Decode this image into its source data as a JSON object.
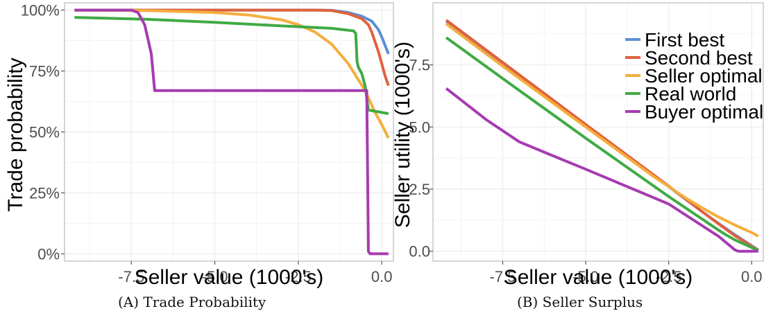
{
  "colors": {
    "first_best": "#5B8ED6",
    "second_best": "#E0623E",
    "seller_optimal": "#F5AE3C",
    "real_world": "#3FAA44",
    "buyer_optimal": "#A63BB0",
    "grid": "#EBEBEB",
    "axis_text": "#4D4D4D",
    "panel_border": "#BBBBBB"
  },
  "chart_data": [
    {
      "id": "A",
      "type": "line",
      "caption_label": "(A)",
      "caption_text": "Trade Probability",
      "xlabel": "Seller value (1000's)",
      "ylabel": "Trade probability",
      "xlim": [
        -9.5,
        0.35
      ],
      "ylim": [
        -0.03,
        1.03
      ],
      "xticks": [
        -7.5,
        -5.0,
        -2.5,
        0.0
      ],
      "xtick_labels": [
        "-7.5",
        "-5.0",
        "-2.5",
        "0.0"
      ],
      "yticks": [
        0,
        0.25,
        0.5,
        0.75,
        1.0
      ],
      "ytick_labels": [
        "0%",
        "25%",
        "50%",
        "75%",
        "100%"
      ],
      "grid": true,
      "series": [
        {
          "key": "first_best",
          "x": [
            -9.2,
            -5,
            -2,
            -1.5,
            -1.0,
            -0.6,
            -0.3,
            -0.1,
            0.0,
            0.1,
            0.2
          ],
          "y": [
            1.0,
            1.0,
            1.0,
            0.999,
            0.99,
            0.975,
            0.955,
            0.92,
            0.89,
            0.855,
            0.82
          ]
        },
        {
          "key": "second_best",
          "x": [
            -9.2,
            -5,
            -2,
            -1.5,
            -1.0,
            -0.6,
            -0.4,
            -0.3,
            -0.2,
            -0.1,
            0.0,
            0.1,
            0.2
          ],
          "y": [
            1.0,
            1.0,
            1.0,
            0.998,
            0.985,
            0.965,
            0.94,
            0.91,
            0.87,
            0.83,
            0.78,
            0.73,
            0.69
          ]
        },
        {
          "key": "seller_optimal",
          "x": [
            -9.2,
            -7,
            -5,
            -4,
            -3,
            -2.5,
            -2.0,
            -1.5,
            -1.0,
            -0.5,
            -0.2,
            0.0,
            0.2
          ],
          "y": [
            1.0,
            0.998,
            0.99,
            0.98,
            0.96,
            0.94,
            0.91,
            0.86,
            0.78,
            0.67,
            0.58,
            0.53,
            0.475
          ]
        },
        {
          "key": "real_world",
          "x": [
            -9.2,
            -7,
            -5,
            -3,
            -1.5,
            -0.85,
            -0.78,
            -0.76,
            -0.74,
            -0.7,
            -0.6,
            -0.5,
            -0.4,
            -0.2,
            0.0,
            0.2
          ],
          "y": [
            0.97,
            0.962,
            0.95,
            0.935,
            0.925,
            0.915,
            0.905,
            0.85,
            0.79,
            0.765,
            0.74,
            0.69,
            0.59,
            0.585,
            0.58,
            0.575
          ]
        },
        {
          "key": "buyer_optimal",
          "x": [
            -9.2,
            -7.5,
            -7.3,
            -7.1,
            -6.9,
            -6.8,
            -5,
            -3,
            -1,
            -0.5,
            -0.45,
            -0.42,
            -0.4,
            -0.35,
            0.0,
            0.2
          ],
          "y": [
            1.0,
            1.0,
            0.99,
            0.94,
            0.82,
            0.67,
            0.67,
            0.67,
            0.67,
            0.67,
            0.67,
            0.3,
            0.01,
            0.0,
            0.0,
            0.0
          ]
        }
      ]
    },
    {
      "id": "B",
      "type": "line",
      "caption_label": "(B)",
      "caption_text": "Seller Surplus",
      "xlabel": "Seller value (1000's)",
      "ylabel": "Seller utility (1000's)",
      "xlim": [
        -9.6,
        0.35
      ],
      "ylim": [
        -0.4,
        10.0
      ],
      "xticks": [
        -7.5,
        -5.0,
        -2.5,
        0.0
      ],
      "xtick_labels": [
        "-7.5",
        "-5.0",
        "-2.5",
        "0.0"
      ],
      "yticks": [
        0,
        2.5,
        5.0,
        7.5
      ],
      "ytick_labels": [
        "0.0",
        "2.5",
        "5.0",
        "7.5"
      ],
      "grid": true,
      "legend_position": "top-right",
      "legend": [
        {
          "key": "first_best",
          "label": "First best"
        },
        {
          "key": "second_best",
          "label": "Second best"
        },
        {
          "key": "seller_optimal",
          "label": "Seller optimal"
        },
        {
          "key": "real_world",
          "label": "Real world"
        },
        {
          "key": "buyer_optimal",
          "label": "Buyer optimal"
        }
      ],
      "series": [
        {
          "key": "first_best",
          "x": [
            -9.2,
            -7.5,
            -5,
            -2.5,
            -1.5,
            -1.0,
            -0.5,
            0.0,
            0.2
          ],
          "y": [
            9.25,
            7.55,
            5.05,
            2.6,
            1.6,
            1.12,
            0.66,
            0.22,
            0.05
          ]
        },
        {
          "key": "second_best",
          "x": [
            -9.2,
            -7.5,
            -5,
            -2.5,
            -1.5,
            -1.0,
            -0.5,
            0.0,
            0.2
          ],
          "y": [
            9.3,
            7.6,
            5.1,
            2.62,
            1.6,
            1.1,
            0.62,
            0.2,
            0.03
          ]
        },
        {
          "key": "seller_optimal",
          "x": [
            -9.2,
            -7.5,
            -5,
            -3,
            -2.5,
            -2.0,
            -1.5,
            -1.0,
            -0.5,
            0.0,
            0.2
          ],
          "y": [
            9.15,
            7.45,
            5.0,
            3.05,
            2.6,
            2.15,
            1.75,
            1.38,
            1.05,
            0.75,
            0.6
          ]
        },
        {
          "key": "real_world",
          "x": [
            -9.2,
            -7.5,
            -5,
            -2.5,
            -1.5,
            -1.0,
            -0.8,
            -0.5,
            0.0,
            0.2
          ],
          "y": [
            8.6,
            6.95,
            4.55,
            2.2,
            1.3,
            0.85,
            0.68,
            0.45,
            0.15,
            0.02
          ]
        },
        {
          "key": "buyer_optimal",
          "x": [
            -9.2,
            -8,
            -7.0,
            -6,
            -5,
            -2.5,
            -1.0,
            -0.5,
            -0.4,
            0.0,
            0.2
          ],
          "y": [
            6.55,
            5.3,
            4.4,
            3.85,
            3.3,
            1.9,
            0.6,
            0.05,
            0.0,
            0.0,
            0.0
          ]
        }
      ]
    }
  ]
}
